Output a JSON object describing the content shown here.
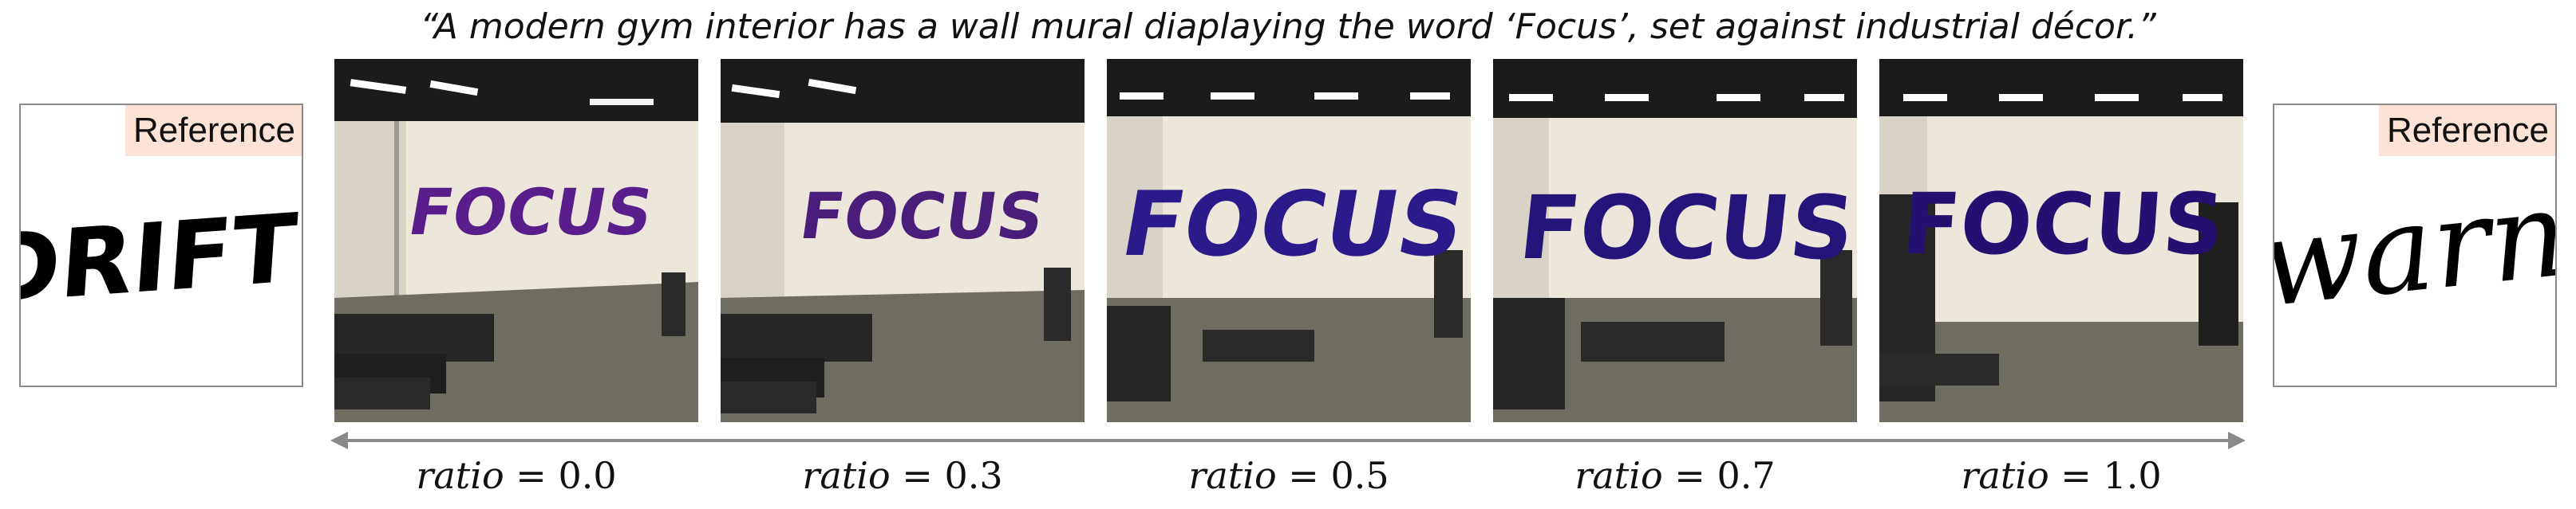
{
  "caption": "“A modern gym interior has a wall mural diaplaying the word ‘Focus’, set against industrial décor.”",
  "references": {
    "left": {
      "label": "Reference",
      "word": "DRIFT"
    },
    "right": {
      "label": "Reference",
      "word": "warn"
    }
  },
  "ratio_var": "ratio",
  "panels": [
    {
      "word": "FOCUS",
      "ratio": "0.0",
      "color": "#5a1e8c"
    },
    {
      "word": "FOCUS",
      "ratio": "0.3",
      "color": "#4a1d7a"
    },
    {
      "word": "FOCUS",
      "ratio": "0.5",
      "color": "#2a1a8a"
    },
    {
      "word": "FOCUS",
      "ratio": "0.7",
      "color": "#25147a"
    },
    {
      "word": "FOCUS",
      "ratio": "1.0",
      "color": "#241070"
    }
  ],
  "colors": {
    "arrow": "#8a8a8a",
    "reference_label_bg": "#fde3d6",
    "wall": "#ece7da",
    "ceiling": "#1b1b1b",
    "floor": "#6f6c62"
  }
}
